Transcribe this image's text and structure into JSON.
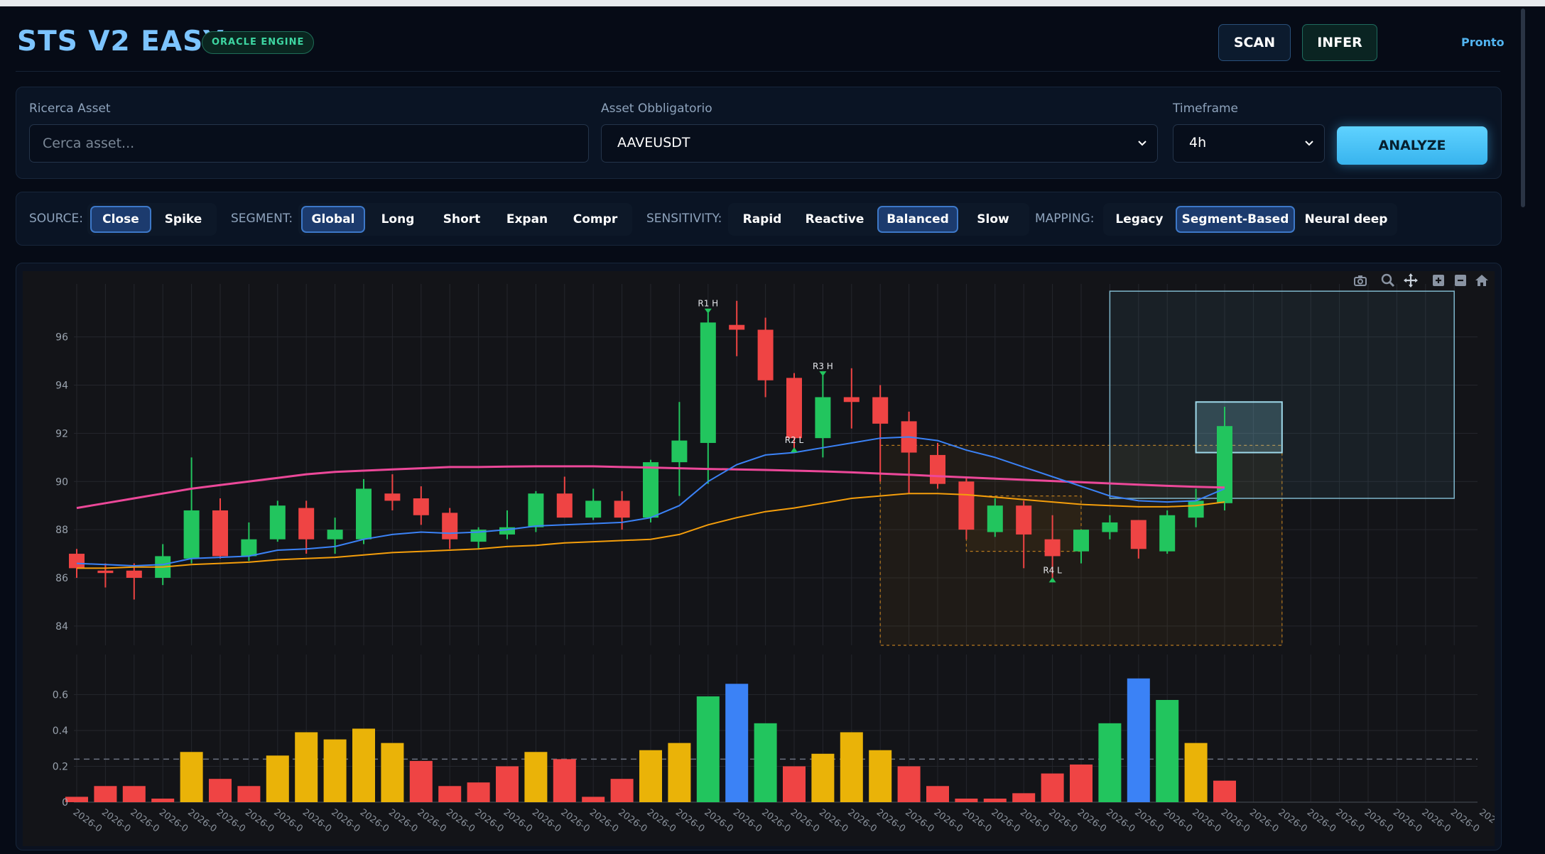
{
  "header": {
    "title": "STS V2 EASY",
    "badge": "ORACLE ENGINE",
    "scan_label": "SCAN",
    "infer_label": "INFER",
    "status": "Pronto"
  },
  "search": {
    "search_label": "Ricerca Asset",
    "search_placeholder": "Cerca asset...",
    "asset_label": "Asset Obbligatorio",
    "asset_value": "AAVEUSDT",
    "timeframe_label": "Timeframe",
    "timeframe_value": "4h",
    "analyze_label": "ANALYZE"
  },
  "filters": {
    "source": {
      "label": "SOURCE:",
      "options": [
        "Close",
        "Spike"
      ],
      "active": "Close"
    },
    "segment": {
      "label": "SEGMENT:",
      "options": [
        "Global",
        "Long",
        "Short",
        "Expan",
        "Compr"
      ],
      "active": "Global"
    },
    "sensitivity": {
      "label": "SENSITIVITY:",
      "options": [
        "Rapid",
        "Reactive",
        "Balanced",
        "Slow"
      ],
      "active": "Balanced"
    },
    "mapping": {
      "label": "MAPPING:",
      "options": [
        "Legacy",
        "Segment-Based",
        "Neural deep"
      ],
      "active": "Segment-Based"
    }
  },
  "modebar": [
    "camera-icon",
    "zoom-icon",
    "pan-icon",
    "zoom-in-icon",
    "zoom-out-icon",
    "home-icon"
  ],
  "colors": {
    "up": "#22c55e",
    "down": "#ef4444",
    "ema_fast": "#3b82f6",
    "ema_slow": "#f59e0b",
    "ema_long": "#ec4899",
    "bar_yellow": "#eab308",
    "bar_red": "#ef4444",
    "bar_green": "#22c55e",
    "bar_blue": "#3b82f6",
    "accent": "#7cc4ff"
  },
  "chart_data": [
    {
      "type": "candlestick",
      "yticks": [
        84,
        86,
        88,
        90,
        92,
        94,
        96
      ],
      "ylim": [
        83.2,
        98.2
      ],
      "candles": [
        {
          "o": 87.0,
          "h": 87.2,
          "l": 86.0,
          "c": 86.4
        },
        {
          "o": 86.3,
          "h": 86.6,
          "l": 85.6,
          "c": 86.2
        },
        {
          "o": 86.3,
          "h": 86.6,
          "l": 85.1,
          "c": 86.0
        },
        {
          "o": 86.0,
          "h": 87.4,
          "l": 85.7,
          "c": 86.9
        },
        {
          "o": 86.8,
          "h": 91.0,
          "l": 86.6,
          "c": 88.8
        },
        {
          "o": 88.8,
          "h": 89.3,
          "l": 86.8,
          "c": 86.9
        },
        {
          "o": 86.9,
          "h": 88.3,
          "l": 86.7,
          "c": 87.6
        },
        {
          "o": 87.6,
          "h": 89.2,
          "l": 87.5,
          "c": 89.0
        },
        {
          "o": 88.9,
          "h": 89.2,
          "l": 87.0,
          "c": 87.6
        },
        {
          "o": 87.6,
          "h": 88.5,
          "l": 87.0,
          "c": 88.0
        },
        {
          "o": 87.6,
          "h": 90.1,
          "l": 87.4,
          "c": 89.7
        },
        {
          "o": 89.5,
          "h": 90.3,
          "l": 88.8,
          "c": 89.2
        },
        {
          "o": 89.3,
          "h": 89.8,
          "l": 88.2,
          "c": 88.6
        },
        {
          "o": 88.7,
          "h": 88.9,
          "l": 87.2,
          "c": 87.6
        },
        {
          "o": 87.5,
          "h": 88.1,
          "l": 87.2,
          "c": 88.0
        },
        {
          "o": 87.8,
          "h": 88.8,
          "l": 87.6,
          "c": 88.1
        },
        {
          "o": 88.1,
          "h": 89.6,
          "l": 87.9,
          "c": 89.5
        },
        {
          "o": 89.5,
          "h": 90.2,
          "l": 88.5,
          "c": 88.5
        },
        {
          "o": 88.5,
          "h": 89.7,
          "l": 88.4,
          "c": 89.2
        },
        {
          "o": 89.2,
          "h": 89.6,
          "l": 88.0,
          "c": 88.5
        },
        {
          "o": 88.5,
          "h": 90.9,
          "l": 88.3,
          "c": 90.8
        },
        {
          "o": 90.8,
          "h": 93.3,
          "l": 89.4,
          "c": 91.7
        },
        {
          "o": 91.6,
          "h": 97.0,
          "l": 89.9,
          "c": 96.6
        },
        {
          "o": 96.5,
          "h": 97.5,
          "l": 95.2,
          "c": 96.3
        },
        {
          "o": 96.3,
          "h": 96.8,
          "l": 93.5,
          "c": 94.2
        },
        {
          "o": 94.3,
          "h": 94.5,
          "l": 91.3,
          "c": 91.8
        },
        {
          "o": 91.8,
          "h": 94.4,
          "l": 91.0,
          "c": 93.5
        },
        {
          "o": 93.5,
          "h": 94.7,
          "l": 92.2,
          "c": 93.3
        },
        {
          "o": 93.5,
          "h": 94.0,
          "l": 90.0,
          "c": 92.4
        },
        {
          "o": 92.5,
          "h": 92.9,
          "l": 89.5,
          "c": 91.2
        },
        {
          "o": 91.1,
          "h": 91.6,
          "l": 89.7,
          "c": 89.9
        },
        {
          "o": 90.0,
          "h": 90.2,
          "l": 87.6,
          "c": 88.0
        },
        {
          "o": 87.9,
          "h": 89.3,
          "l": 87.7,
          "c": 89.0
        },
        {
          "o": 89.0,
          "h": 89.2,
          "l": 86.4,
          "c": 87.8
        },
        {
          "o": 87.6,
          "h": 88.6,
          "l": 85.9,
          "c": 86.9
        },
        {
          "o": 87.1,
          "h": 88.0,
          "l": 86.6,
          "c": 88.0
        },
        {
          "o": 87.9,
          "h": 88.6,
          "l": 87.6,
          "c": 88.3
        },
        {
          "o": 88.4,
          "h": 88.4,
          "l": 86.8,
          "c": 87.2
        },
        {
          "o": 87.1,
          "h": 88.8,
          "l": 87.0,
          "c": 88.6
        },
        {
          "o": 88.5,
          "h": 89.7,
          "l": 88.1,
          "c": 89.2
        },
        {
          "o": 89.1,
          "h": 93.1,
          "l": 88.8,
          "c": 92.3
        }
      ],
      "ema_fast": [
        86.6,
        86.55,
        86.5,
        86.55,
        86.8,
        86.85,
        86.9,
        87.15,
        87.2,
        87.3,
        87.6,
        87.8,
        87.9,
        87.85,
        87.9,
        88.0,
        88.15,
        88.2,
        88.25,
        88.3,
        88.5,
        89.0,
        90.0,
        90.7,
        91.1,
        91.2,
        91.4,
        91.6,
        91.8,
        91.85,
        91.7,
        91.3,
        91.0,
        90.6,
        90.2,
        89.8,
        89.4,
        89.2,
        89.15,
        89.2,
        89.7
      ],
      "ema_slow": [
        86.4,
        86.4,
        86.45,
        86.45,
        86.55,
        86.6,
        86.65,
        86.75,
        86.8,
        86.85,
        86.95,
        87.05,
        87.1,
        87.15,
        87.2,
        87.3,
        87.35,
        87.45,
        87.5,
        87.55,
        87.6,
        87.8,
        88.2,
        88.5,
        88.75,
        88.9,
        89.1,
        89.3,
        89.4,
        89.5,
        89.5,
        89.45,
        89.35,
        89.25,
        89.15,
        89.05,
        89.0,
        88.95,
        88.95,
        89.0,
        89.15
      ],
      "ema_long": [
        88.9,
        89.1,
        89.3,
        89.5,
        89.7,
        89.85,
        90.0,
        90.15,
        90.3,
        90.4,
        90.45,
        90.5,
        90.55,
        90.6,
        90.6,
        90.62,
        90.63,
        90.63,
        90.63,
        90.6,
        90.58,
        90.55,
        90.52,
        90.5,
        90.48,
        90.45,
        90.42,
        90.38,
        90.33,
        90.28,
        90.22,
        90.17,
        90.12,
        90.07,
        90.02,
        89.97,
        89.92,
        89.87,
        89.82,
        89.78,
        89.75
      ],
      "pivots": [
        {
          "label": "R1 H",
          "index": 22,
          "type": "high"
        },
        {
          "label": "R2 L",
          "index": 25,
          "type": "low"
        },
        {
          "label": "R3 H",
          "index": 26,
          "type": "high"
        },
        {
          "label": "R4 L",
          "index": 34,
          "type": "low"
        }
      ],
      "zones": [
        {
          "x0": 28,
          "x1": 42,
          "y0": 83.0,
          "y1": 91.5,
          "style": "orange-dashed"
        },
        {
          "x0": 31,
          "x1": 35,
          "y0": 87.1,
          "y1": 89.4,
          "style": "orange-dashed"
        },
        {
          "x0": 36,
          "x1": 48,
          "y0": 89.3,
          "y1": 97.9,
          "style": "cyan-box"
        },
        {
          "x0": 39,
          "x1": 42,
          "y0": 91.2,
          "y1": 93.3,
          "style": "cyan-box-strong"
        }
      ]
    },
    {
      "type": "bar",
      "yticks": [
        0,
        0.2,
        0.4,
        0.6
      ],
      "ylim": [
        0,
        0.76
      ],
      "threshold": 0.24,
      "values": [
        0.03,
        0.09,
        0.09,
        0.02,
        0.28,
        0.13,
        0.09,
        0.26,
        0.39,
        0.35,
        0.41,
        0.33,
        0.23,
        0.09,
        0.11,
        0.2,
        0.28,
        0.24,
        0.03,
        0.13,
        0.29,
        0.33,
        0.59,
        0.66,
        0.44,
        0.2,
        0.27,
        0.39,
        0.29,
        0.2,
        0.09,
        0.02,
        0.02,
        0.05,
        0.16,
        0.21,
        0.44,
        0.69,
        0.57,
        0.33,
        0.12
      ],
      "colors": [
        "red",
        "red",
        "red",
        "red",
        "yellow",
        "red",
        "red",
        "yellow",
        "yellow",
        "yellow",
        "yellow",
        "yellow",
        "red",
        "red",
        "red",
        "red",
        "yellow",
        "red",
        "red",
        "red",
        "yellow",
        "yellow",
        "green",
        "blue",
        "green",
        "red",
        "yellow",
        "yellow",
        "yellow",
        "red",
        "red",
        "red",
        "red",
        "red",
        "red",
        "red",
        "green",
        "blue",
        "green",
        "yellow",
        "red"
      ],
      "x_tick_label": "2026-0"
    }
  ]
}
